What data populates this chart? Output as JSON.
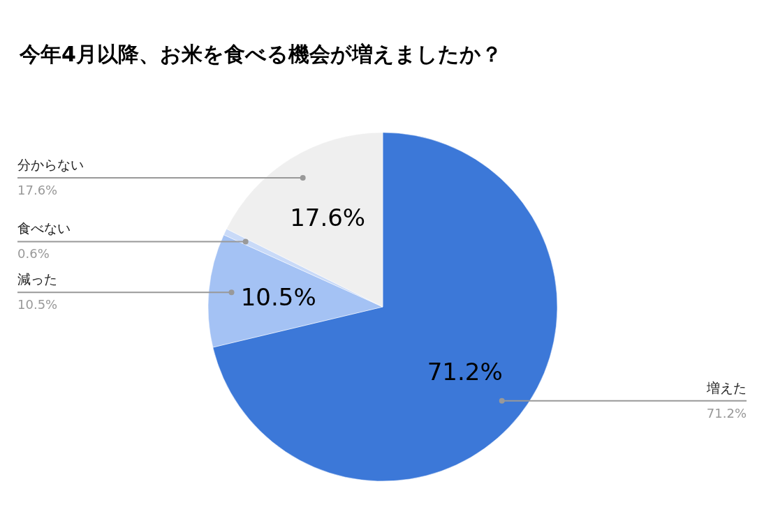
{
  "chart_data": {
    "type": "pie",
    "title": "今年4月以降、お米を食べる機会が増えましたか？",
    "categories": [
      "増えた",
      "減った",
      "食べない",
      "分からない"
    ],
    "values": [
      71.2,
      10.5,
      0.6,
      17.6
    ],
    "value_labels": [
      "71.2%",
      "10.5%",
      "0.6%",
      "17.6%"
    ],
    "colors": [
      "#3c78d8",
      "#a4c2f4",
      "#c9daf8",
      "#efefef"
    ],
    "legend": false
  }
}
